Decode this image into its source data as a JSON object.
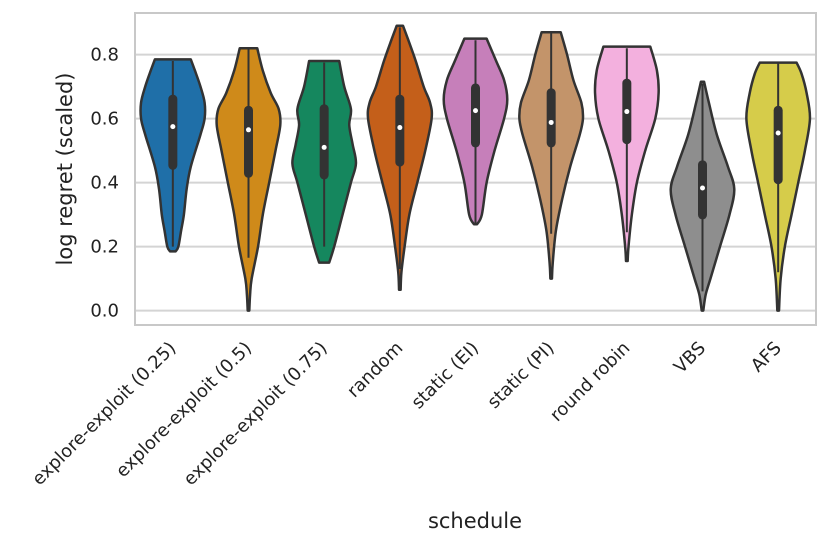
{
  "chart_data": {
    "type": "violin",
    "title": "",
    "xlabel": "schedule",
    "ylabel": "log regret (scaled)",
    "ylim": [
      -0.045,
      0.93
    ],
    "yticks": [
      0.0,
      0.2,
      0.4,
      0.6,
      0.8
    ],
    "ytick_labels": [
      "0.0",
      "0.2",
      "0.4",
      "0.6",
      "0.8"
    ],
    "grid": "horizontal",
    "categories": [
      "explore-exploit (0.25)",
      "explore-exploit (0.5)",
      "explore-exploit (0.75)",
      "random",
      "static (EI)",
      "static (PI)",
      "round robin",
      "VBS",
      "AFS"
    ],
    "colors": [
      "#1f6fa8",
      "#cf8a1a",
      "#15875e",
      "#c45f1a",
      "#c67fba",
      "#c3946a",
      "#f3b0de",
      "#8e8e8e",
      "#d6cc4a"
    ],
    "violins": [
      {
        "min": 0.185,
        "max": 0.785,
        "q1": 0.44,
        "median": 0.575,
        "q3": 0.675,
        "whisker_low": 0.2,
        "whisker_high": 0.78,
        "profile": [
          [
            0.185,
            0.2
          ],
          [
            0.2,
            0.4
          ],
          [
            0.25,
            0.6
          ],
          [
            0.3,
            0.8
          ],
          [
            0.38,
            1.0
          ],
          [
            0.45,
            1.3
          ],
          [
            0.55,
            2.0
          ],
          [
            0.6,
            2.3
          ],
          [
            0.65,
            2.3
          ],
          [
            0.7,
            2.0
          ],
          [
            0.75,
            1.6
          ],
          [
            0.785,
            1.3
          ]
        ]
      },
      {
        "min": 0.0,
        "max": 0.82,
        "q1": 0.415,
        "median": 0.565,
        "q3": 0.64,
        "whisker_low": 0.165,
        "whisker_high": 0.82,
        "profile": [
          [
            0.0,
            0.05
          ],
          [
            0.05,
            0.1
          ],
          [
            0.1,
            0.2
          ],
          [
            0.2,
            0.6
          ],
          [
            0.3,
            0.9
          ],
          [
            0.4,
            1.3
          ],
          [
            0.5,
            1.7
          ],
          [
            0.58,
            2.0
          ],
          [
            0.63,
            1.9
          ],
          [
            0.68,
            1.4
          ],
          [
            0.75,
            0.9
          ],
          [
            0.82,
            0.55
          ]
        ]
      },
      {
        "min": 0.15,
        "max": 0.78,
        "q1": 0.41,
        "median": 0.51,
        "q3": 0.645,
        "whisker_low": 0.2,
        "whisker_high": 0.775,
        "profile": [
          [
            0.15,
            0.3
          ],
          [
            0.2,
            0.6
          ],
          [
            0.3,
            1.1
          ],
          [
            0.4,
            1.6
          ],
          [
            0.46,
            1.9
          ],
          [
            0.52,
            1.7
          ],
          [
            0.58,
            1.5
          ],
          [
            0.63,
            1.6
          ],
          [
            0.7,
            1.2
          ],
          [
            0.78,
            0.9
          ]
        ]
      },
      {
        "min": 0.065,
        "max": 0.89,
        "q1": 0.45,
        "median": 0.572,
        "q3": 0.675,
        "whisker_low": 0.13,
        "whisker_high": 0.885,
        "profile": [
          [
            0.065,
            0.05
          ],
          [
            0.12,
            0.1
          ],
          [
            0.2,
            0.3
          ],
          [
            0.3,
            0.6
          ],
          [
            0.4,
            1.1
          ],
          [
            0.5,
            1.6
          ],
          [
            0.6,
            2.0
          ],
          [
            0.65,
            1.9
          ],
          [
            0.7,
            1.5
          ],
          [
            0.78,
            1.0
          ],
          [
            0.85,
            0.5
          ],
          [
            0.89,
            0.2
          ]
        ]
      },
      {
        "min": 0.27,
        "max": 0.85,
        "q1": 0.51,
        "median": 0.625,
        "q3": 0.71,
        "whisker_low": 0.27,
        "whisker_high": 0.845,
        "profile": [
          [
            0.27,
            0.1
          ],
          [
            0.3,
            0.4
          ],
          [
            0.4,
            0.7
          ],
          [
            0.5,
            1.2
          ],
          [
            0.6,
            1.8
          ],
          [
            0.66,
            2.0
          ],
          [
            0.72,
            1.8
          ],
          [
            0.78,
            1.3
          ],
          [
            0.85,
            0.7
          ]
        ]
      },
      {
        "min": 0.1,
        "max": 0.87,
        "q1": 0.51,
        "median": 0.588,
        "q3": 0.695,
        "whisker_low": 0.24,
        "whisker_high": 0.87,
        "profile": [
          [
            0.1,
            0.05
          ],
          [
            0.15,
            0.1
          ],
          [
            0.25,
            0.3
          ],
          [
            0.35,
            0.7
          ],
          [
            0.45,
            1.2
          ],
          [
            0.55,
            1.8
          ],
          [
            0.6,
            2.0
          ],
          [
            0.65,
            1.9
          ],
          [
            0.72,
            1.4
          ],
          [
            0.8,
            1.0
          ],
          [
            0.87,
            0.6
          ]
        ]
      },
      {
        "min": 0.155,
        "max": 0.825,
        "q1": 0.52,
        "median": 0.622,
        "q3": 0.725,
        "whisker_low": 0.245,
        "whisker_high": 0.82,
        "profile": [
          [
            0.155,
            0.05
          ],
          [
            0.2,
            0.1
          ],
          [
            0.3,
            0.3
          ],
          [
            0.4,
            0.6
          ],
          [
            0.5,
            1.1
          ],
          [
            0.6,
            1.7
          ],
          [
            0.68,
            1.9
          ],
          [
            0.75,
            1.8
          ],
          [
            0.825,
            1.4
          ]
        ]
      },
      {
        "min": 0.0,
        "max": 0.715,
        "q1": 0.285,
        "median": 0.383,
        "q3": 0.47,
        "whisker_low": 0.06,
        "whisker_high": 0.71,
        "profile": [
          [
            0.0,
            0.05
          ],
          [
            0.05,
            0.2
          ],
          [
            0.1,
            0.5
          ],
          [
            0.2,
            1.1
          ],
          [
            0.3,
            1.7
          ],
          [
            0.38,
            2.0
          ],
          [
            0.45,
            1.6
          ],
          [
            0.55,
            0.9
          ],
          [
            0.65,
            0.4
          ],
          [
            0.715,
            0.1
          ]
        ]
      },
      {
        "min": 0.0,
        "max": 0.775,
        "q1": 0.395,
        "median": 0.555,
        "q3": 0.64,
        "whisker_low": 0.12,
        "whisker_high": 0.775,
        "profile": [
          [
            0.0,
            0.05
          ],
          [
            0.1,
            0.15
          ],
          [
            0.2,
            0.4
          ],
          [
            0.3,
            0.8
          ],
          [
            0.4,
            1.2
          ],
          [
            0.5,
            1.6
          ],
          [
            0.6,
            1.9
          ],
          [
            0.68,
            1.7
          ],
          [
            0.74,
            1.4
          ],
          [
            0.775,
            1.1
          ]
        ]
      }
    ]
  }
}
